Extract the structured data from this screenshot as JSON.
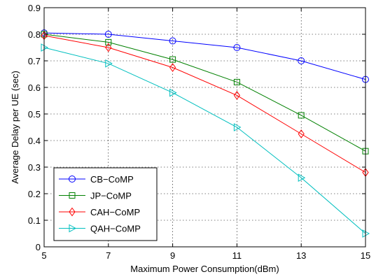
{
  "chart_data": {
    "type": "line",
    "xlabel": "Maximum Power Consumption(dBm)",
    "ylabel": "Average Delay per UE (sec)",
    "xlim": [
      5,
      15
    ],
    "ylim": [
      0,
      0.9
    ],
    "xticks": [
      5,
      7,
      9,
      11,
      13,
      15
    ],
    "yticks": [
      0,
      0.1,
      0.2,
      0.3,
      0.4,
      0.5,
      0.6,
      0.7,
      0.8,
      0.9
    ],
    "grid": true,
    "legend_position": "bottom-left",
    "x": [
      5,
      7,
      9,
      11,
      13,
      15
    ],
    "series": [
      {
        "name": "CB−CoMP",
        "color": "#0000ff",
        "marker": "circle",
        "values": [
          0.805,
          0.8,
          0.775,
          0.75,
          0.7,
          0.63
        ]
      },
      {
        "name": "JP−CoMP",
        "color": "#008000",
        "marker": "square",
        "values": [
          0.8,
          0.77,
          0.705,
          0.62,
          0.495,
          0.36
        ]
      },
      {
        "name": "CAH−CoMP",
        "color": "#ff0000",
        "marker": "diamond",
        "values": [
          0.795,
          0.75,
          0.675,
          0.57,
          0.425,
          0.28
        ]
      },
      {
        "name": "QAH−CoMP",
        "color": "#00bfbf",
        "marker": "triangle-right",
        "values": [
          0.75,
          0.69,
          0.58,
          0.45,
          0.26,
          0.05
        ]
      }
    ]
  }
}
